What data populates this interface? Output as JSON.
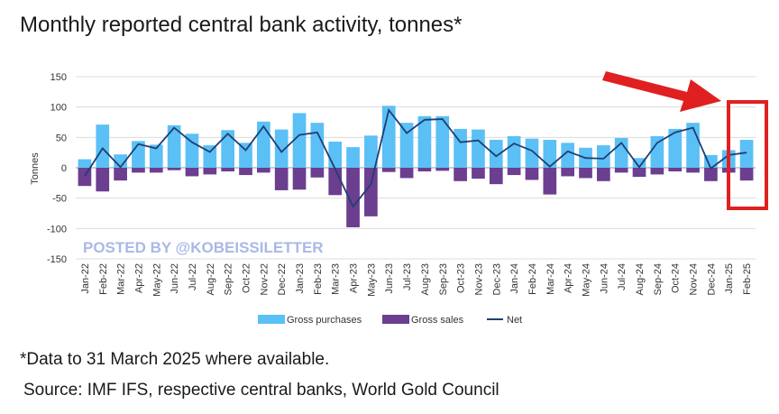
{
  "title": "Monthly reported central bank activity, tonnes*",
  "footnote": "*Data to 31 March 2025 where available.",
  "source": "Source: IMF IFS, respective central banks, World Gold Council",
  "watermark": "POSTED BY @KOBEISSILETTER",
  "colors": {
    "purchases": "#5bc0f5",
    "sales": "#6b3e8f",
    "net": "#1f3f73",
    "highlight": "#e02020"
  },
  "chart_data": {
    "type": "bar",
    "ylabel": "Tonnes",
    "ylim": [
      -150,
      150
    ],
    "yticks": [
      150,
      100,
      50,
      0,
      -50,
      -100,
      -150
    ],
    "categories": [
      "Jan-22",
      "Feb-22",
      "Mar-22",
      "Apr-22",
      "May-22",
      "Jun-22",
      "Jul-22",
      "Aug-22",
      "Sep-22",
      "Oct-22",
      "Nov-22",
      "Dec-22",
      "Jan-23",
      "Feb-23",
      "Mar-23",
      "Apr-23",
      "May-23",
      "Jun-23",
      "Jul-23",
      "Aug-23",
      "Sep-23",
      "Oct-23",
      "Nov-23",
      "Dec-23",
      "Jan-24",
      "Feb-24",
      "Mar-24",
      "Apr-24",
      "May-24",
      "Jun-24",
      "Jul-24",
      "Aug-24",
      "Sep-24",
      "Oct-24",
      "Nov-24",
      "Dec-24",
      "Jan-25",
      "Feb-25"
    ],
    "series": [
      {
        "name": "Gross purchases",
        "type": "bar",
        "values": [
          14,
          71,
          22,
          44,
          38,
          70,
          56,
          37,
          62,
          41,
          76,
          63,
          90,
          74,
          43,
          34,
          53,
          102,
          74,
          85,
          85,
          64,
          63,
          46,
          52,
          48,
          46,
          41,
          33,
          37,
          49,
          16,
          52,
          64,
          74,
          21,
          29,
          46
        ]
      },
      {
        "name": "Gross sales",
        "type": "bar",
        "values": [
          -30,
          -39,
          -21,
          -8,
          -8,
          -4,
          -14,
          -11,
          -6,
          -12,
          -8,
          -37,
          -36,
          -16,
          -45,
          -98,
          -80,
          -7,
          -17,
          -6,
          -5,
          -22,
          -18,
          -27,
          -12,
          -20,
          -44,
          -14,
          -17,
          -22,
          -8,
          -15,
          -11,
          -6,
          -8,
          -22,
          -8,
          -21
        ]
      },
      {
        "name": "Net",
        "type": "line",
        "values": [
          -14,
          32,
          1,
          39,
          32,
          66,
          42,
          26,
          56,
          29,
          68,
          26,
          54,
          58,
          -2,
          -64,
          -27,
          95,
          57,
          79,
          80,
          42,
          45,
          19,
          40,
          28,
          2,
          27,
          16,
          15,
          41,
          1,
          41,
          58,
          66,
          -1,
          21,
          25
        ]
      }
    ],
    "legend": [
      "Gross purchases",
      "Gross sales",
      "Net"
    ],
    "legend_position": "bottom-center",
    "grid": true,
    "annotations": [
      "red arrow pointing to latest bars",
      "red box highlighting Jan-25 and Feb-25"
    ]
  }
}
